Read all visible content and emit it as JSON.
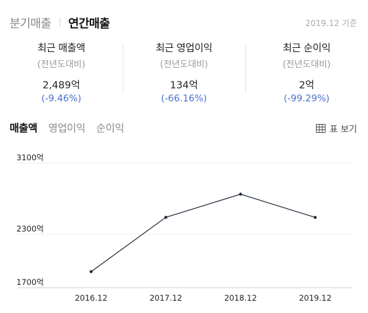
{
  "period_tabs": [
    {
      "label": "분기매출",
      "active": false
    },
    {
      "label": "연간매출",
      "active": true
    }
  ],
  "basis": "2019.12 기준",
  "summary": [
    {
      "title": "최근 매출액",
      "sub": "(전년도대비)",
      "value": "2,489억",
      "change": "(-9.46%)"
    },
    {
      "title": "최근 영업이익",
      "sub": "(전년도대비)",
      "value": "134억",
      "change": "(-66.16%)"
    },
    {
      "title": "최근 순이익",
      "sub": "(전년도대비)",
      "value": "2억",
      "change": "(-99.29%)"
    }
  ],
  "metric_tabs": [
    {
      "label": "매출액",
      "active": true
    },
    {
      "label": "영업이익",
      "active": false
    },
    {
      "label": "순이익",
      "active": false
    }
  ],
  "table_view": {
    "label": "표 보기",
    "icon": "table-grid-icon"
  },
  "colors": {
    "accent_blue": "#4a6fd0",
    "line": "#1f2a3a",
    "grid": "#eeeeee"
  },
  "chart_data": {
    "type": "line",
    "categories": [
      "2016.12",
      "2017.12",
      "2018.12",
      "2019.12"
    ],
    "series": [
      {
        "values": [
          1880,
          2490,
          2750,
          2489
        ]
      }
    ],
    "y_ticks": [
      {
        "value": 3100,
        "label": "3100억"
      },
      {
        "value": 2300,
        "label": "2300억"
      },
      {
        "value": 1700,
        "label": "1700억"
      }
    ],
    "ylim": [
      1700,
      3100
    ],
    "grid": true
  }
}
